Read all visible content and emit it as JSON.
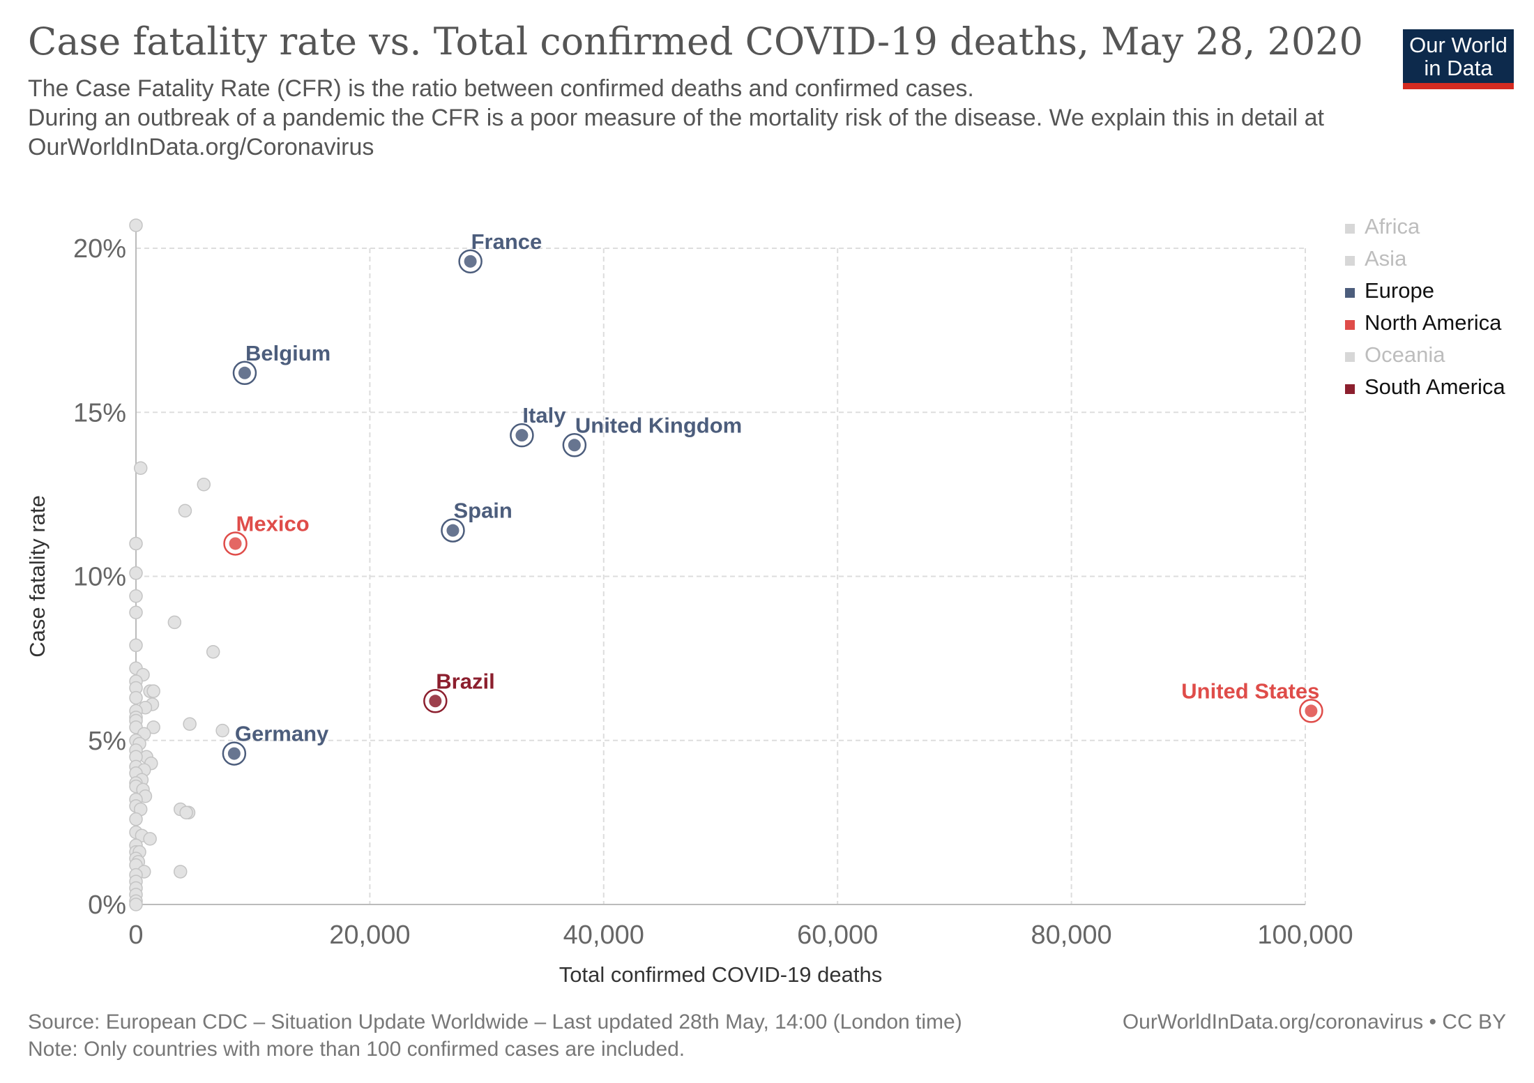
{
  "header": {
    "title": "Case fatality rate vs. Total confirmed COVID-19 deaths, May 28, 2020",
    "subtitle": "The Case Fatality Rate (CFR) is the ratio between confirmed deaths and confirmed cases.\n During an outbreak of a pandemic the CFR is a poor measure of the mortality risk of the disease. We explain this in detail at OurWorldInData.org/Coronavirus",
    "logo_line1": "Our World",
    "logo_line2": "in Data"
  },
  "footer": {
    "source": "Source: European CDC – Situation Update Worldwide – Last updated 28th May, 14:00 (London time)",
    "url": "OurWorldInData.org/coronavirus • CC BY",
    "note": "Note: Only countries with more than 100 confirmed cases are included."
  },
  "colors": {
    "Africa": "#c8c8c8",
    "Asia": "#c8c8c8",
    "Europe": "#4c5d7c",
    "North America": "#df4c49",
    "Oceania": "#c8c8c8",
    "South America": "#8c1f2e",
    "background_point": "#e2e2e2",
    "grid": "#dddddd",
    "axis_text": "#666666",
    "legend_active_text": "#111111",
    "legend_muted_text": "#bdbdbd"
  },
  "chart_data": {
    "type": "scatter",
    "xlabel": "Total confirmed COVID-19 deaths",
    "ylabel": "Case fatality rate",
    "xlim": [
      0,
      100000
    ],
    "ylim": [
      0,
      20
    ],
    "x_ticks": [
      0,
      20000,
      40000,
      60000,
      80000,
      100000
    ],
    "x_tick_labels": [
      "0",
      "20,000",
      "40,000",
      "60,000",
      "80,000",
      "100,000"
    ],
    "y_ticks": [
      0,
      5,
      10,
      15,
      20
    ],
    "y_tick_labels": [
      "0%",
      "5%",
      "10%",
      "15%",
      "20%"
    ],
    "grid": true,
    "legend_position": "right",
    "legend": [
      {
        "name": "Africa",
        "active": false
      },
      {
        "name": "Asia",
        "active": false
      },
      {
        "name": "Europe",
        "active": true
      },
      {
        "name": "North America",
        "active": true
      },
      {
        "name": "Oceania",
        "active": false
      },
      {
        "name": "South America",
        "active": true
      }
    ],
    "labeled_points": [
      {
        "name": "France",
        "continent": "Europe",
        "x": 28600,
        "y": 19.6,
        "label_side": "right"
      },
      {
        "name": "Belgium",
        "continent": "Europe",
        "x": 9300,
        "y": 16.2,
        "label_side": "right"
      },
      {
        "name": "Italy",
        "continent": "Europe",
        "x": 33000,
        "y": 14.3,
        "label_side": "right"
      },
      {
        "name": "United Kingdom",
        "continent": "Europe",
        "x": 37500,
        "y": 14.0,
        "label_side": "right"
      },
      {
        "name": "Spain",
        "continent": "Europe",
        "x": 27100,
        "y": 11.4,
        "label_side": "right"
      },
      {
        "name": "Mexico",
        "continent": "North America",
        "x": 8500,
        "y": 11.0,
        "label_side": "right"
      },
      {
        "name": "Brazil",
        "continent": "South America",
        "x": 25600,
        "y": 6.2,
        "label_side": "right"
      },
      {
        "name": "Germany",
        "continent": "Europe",
        "x": 8400,
        "y": 4.6,
        "label_side": "right"
      },
      {
        "name": "United States",
        "continent": "North America",
        "x": 100500,
        "y": 5.9,
        "label_side": "left"
      }
    ],
    "background_points": [
      [
        0,
        20.7
      ],
      [
        400,
        13.3
      ],
      [
        5800,
        12.8
      ],
      [
        4200,
        12.0
      ],
      [
        0,
        11.0
      ],
      [
        0,
        10.1
      ],
      [
        0,
        9.4
      ],
      [
        0,
        8.9
      ],
      [
        3300,
        8.6
      ],
      [
        0,
        7.9
      ],
      [
        6600,
        7.7
      ],
      [
        0,
        7.2
      ],
      [
        600,
        7.0
      ],
      [
        0,
        6.8
      ],
      [
        0,
        6.6
      ],
      [
        1200,
        6.5
      ],
      [
        1500,
        6.5
      ],
      [
        0,
        6.3
      ],
      [
        1400,
        6.1
      ],
      [
        800,
        6.0
      ],
      [
        0,
        5.9
      ],
      [
        0,
        5.7
      ],
      [
        0,
        5.6
      ],
      [
        4600,
        5.5
      ],
      [
        1500,
        5.4
      ],
      [
        0,
        5.4
      ],
      [
        7400,
        5.3
      ],
      [
        700,
        5.2
      ],
      [
        0,
        5.0
      ],
      [
        300,
        4.9
      ],
      [
        0,
        4.7
      ],
      [
        900,
        4.5
      ],
      [
        1300,
        4.3
      ],
      [
        0,
        4.5
      ],
      [
        0,
        4.2
      ],
      [
        700,
        4.1
      ],
      [
        0,
        4.0
      ],
      [
        500,
        3.8
      ],
      [
        0,
        3.7
      ],
      [
        0,
        3.6
      ],
      [
        600,
        3.5
      ],
      [
        800,
        3.3
      ],
      [
        0,
        3.2
      ],
      [
        0,
        3.0
      ],
      [
        400,
        2.9
      ],
      [
        3800,
        2.9
      ],
      [
        4500,
        2.8
      ],
      [
        4300,
        2.8
      ],
      [
        0,
        2.6
      ],
      [
        0,
        2.2
      ],
      [
        500,
        2.1
      ],
      [
        1200,
        2.0
      ],
      [
        0,
        1.8
      ],
      [
        0,
        1.6
      ],
      [
        300,
        1.6
      ],
      [
        0,
        1.4
      ],
      [
        200,
        1.3
      ],
      [
        0,
        1.2
      ],
      [
        700,
        1.0
      ],
      [
        3800,
        1.0
      ],
      [
        0,
        0.9
      ],
      [
        0,
        0.7
      ],
      [
        0,
        0.5
      ],
      [
        0,
        0.3
      ],
      [
        0,
        0.1
      ],
      [
        0,
        0.0
      ]
    ]
  }
}
